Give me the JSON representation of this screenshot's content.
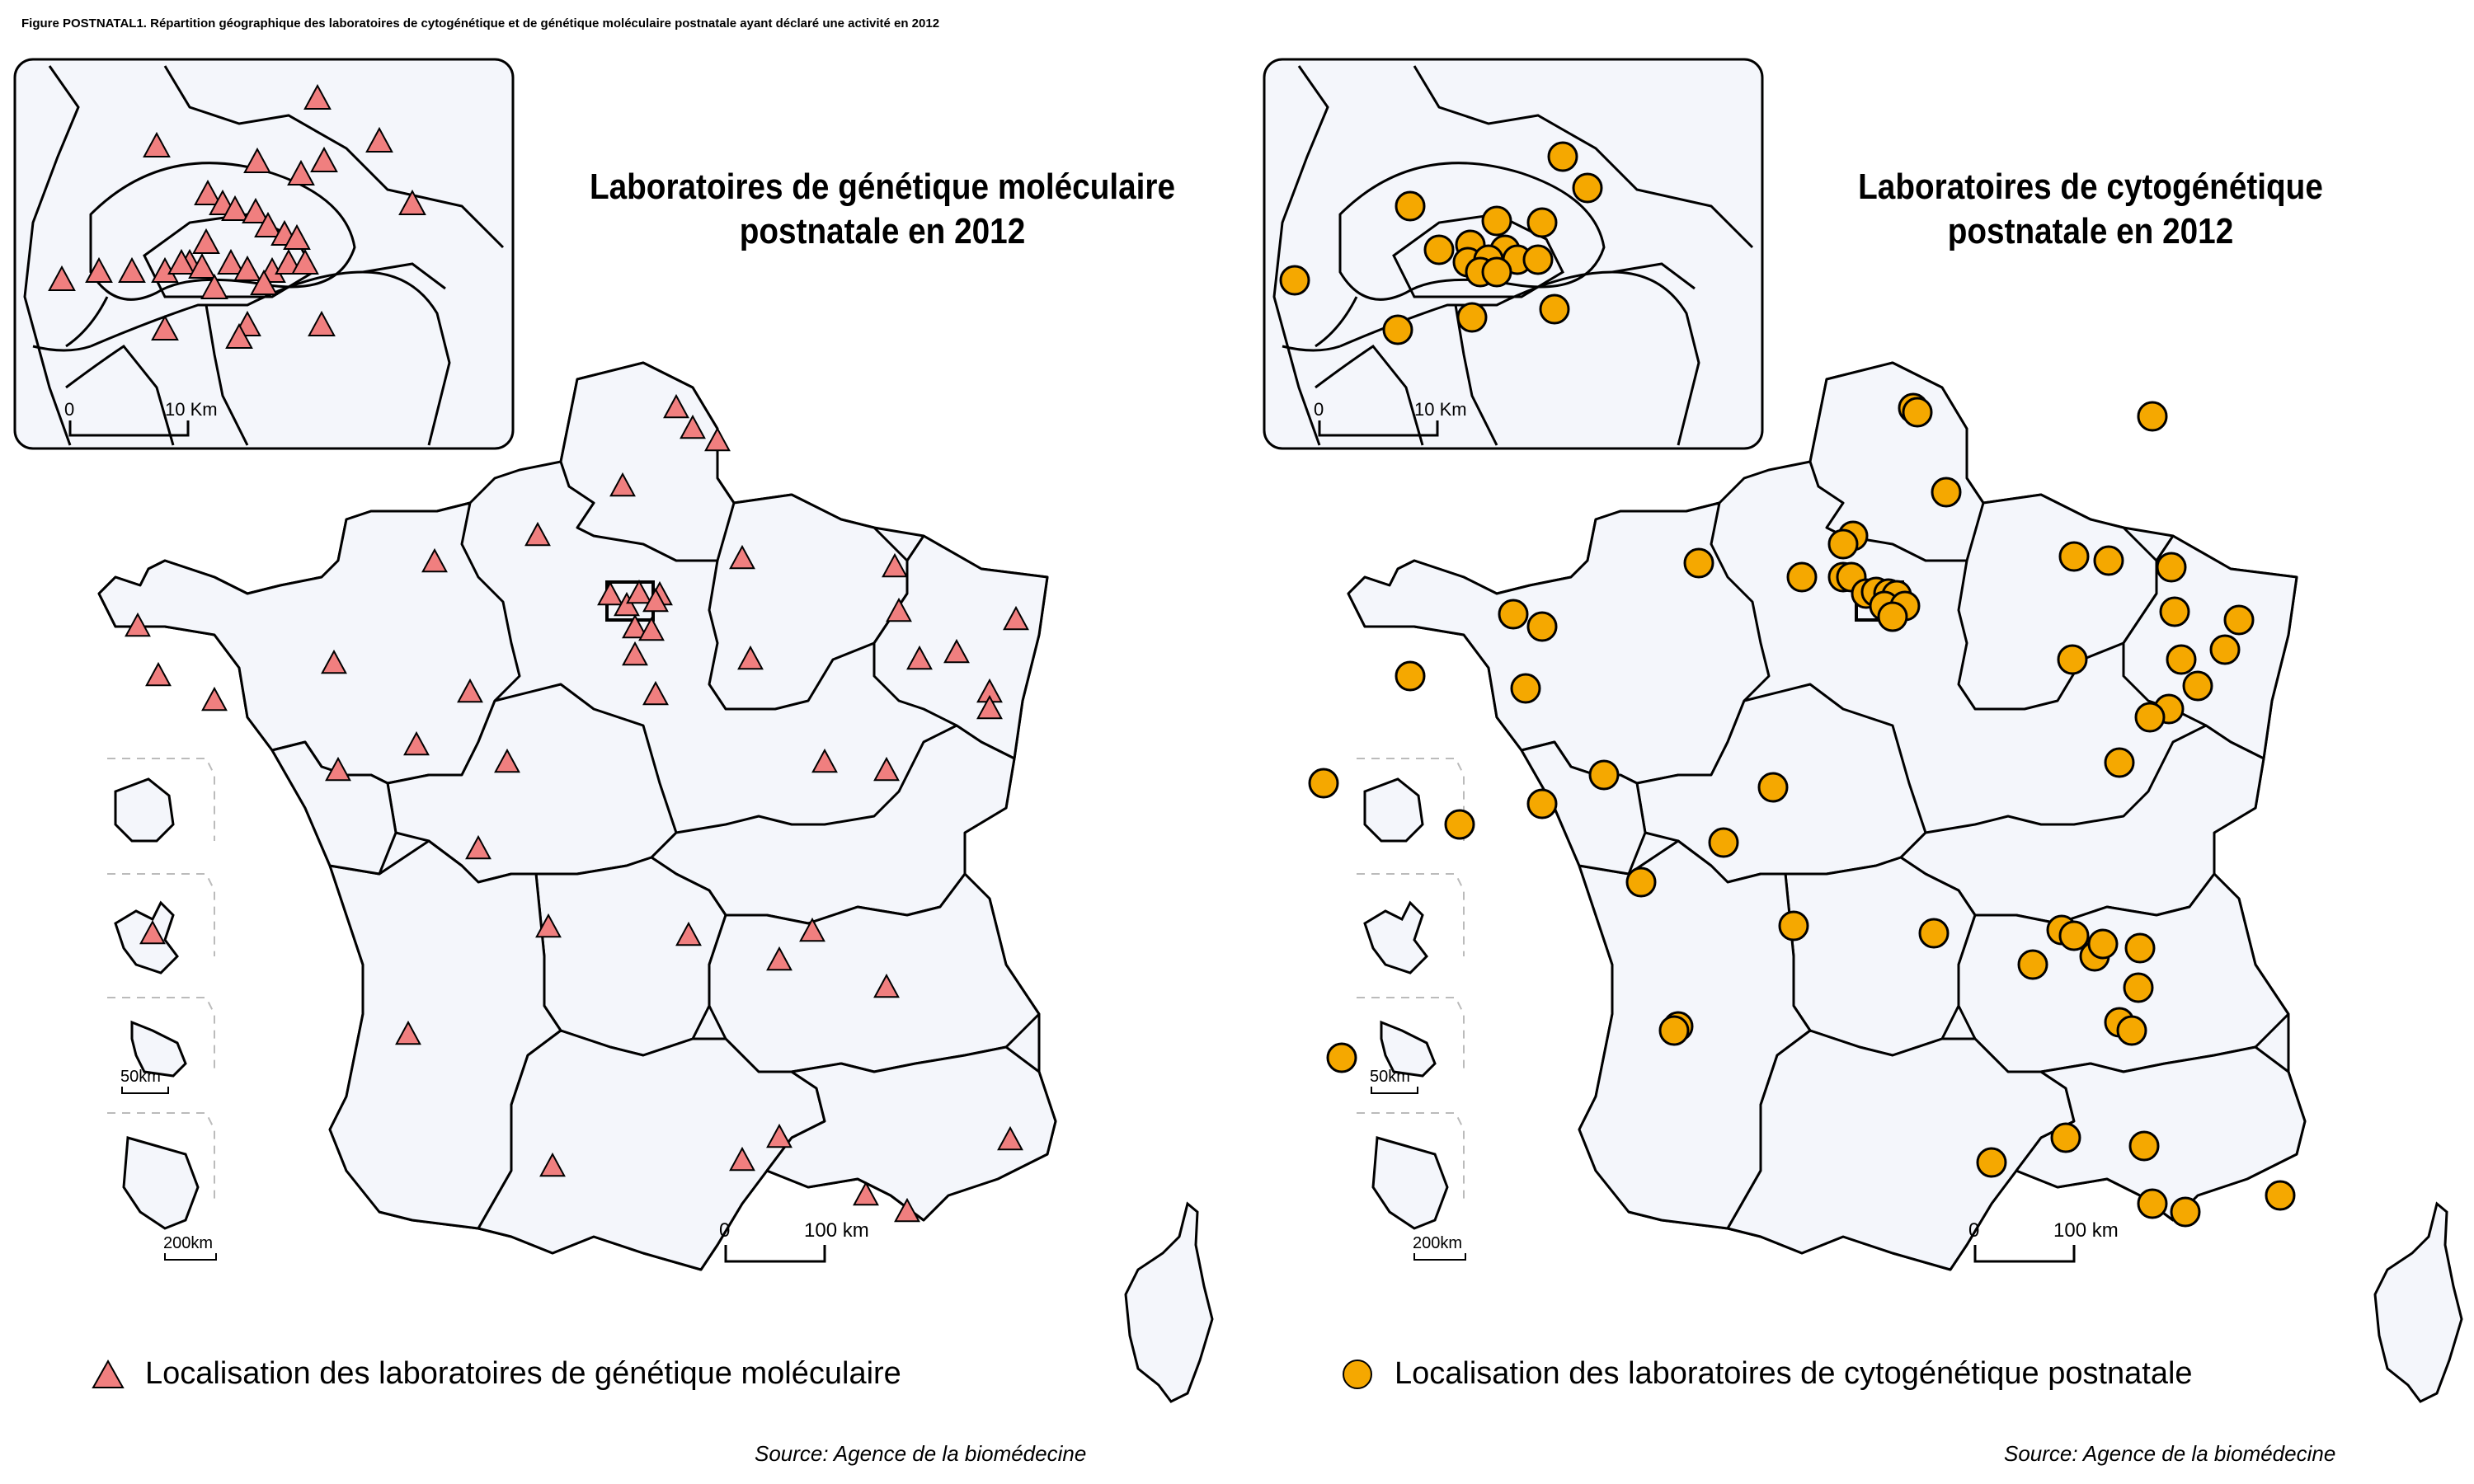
{
  "figure_title": "Figure POSTNATAL1. Répartition géographique des laboratoires de cytogénétique et de génétique moléculaire postnatale ayant déclaré une activité en 2012",
  "colors": {
    "triangle": "#f07f7f",
    "circle": "#f5a800",
    "region_fill": "#f4f6fb",
    "stroke": "#000000"
  },
  "panels": [
    {
      "title_line1": "Laboratoires de génétique moléculaire",
      "title_line2": "postnatale en 2012",
      "legend": "Localisation des laboratoires de génétique moléculaire",
      "source": "Source: Agence de la biomédecine",
      "marker": "triangle",
      "inset_scale_0": "0",
      "inset_scale_10": "10 Km",
      "main_scale_0": "0",
      "main_scale_100": "100 km",
      "dom_scale_50": "50km",
      "dom_scale_200": "200km"
    },
    {
      "title_line1": "Laboratoires de cytogénétique",
      "title_line2": "postnatale en 2012",
      "legend": "Localisation des laboratoires de cytogénétique postnatale",
      "source": "Source: Agence de la biomédecine",
      "marker": "circle",
      "inset_scale_0": "0",
      "inset_scale_10": "10 Km",
      "main_scale_0": "0",
      "main_scale_100": "100 km",
      "dom_scale_50": "50km",
      "dom_scale_200": "200km"
    }
  ]
}
